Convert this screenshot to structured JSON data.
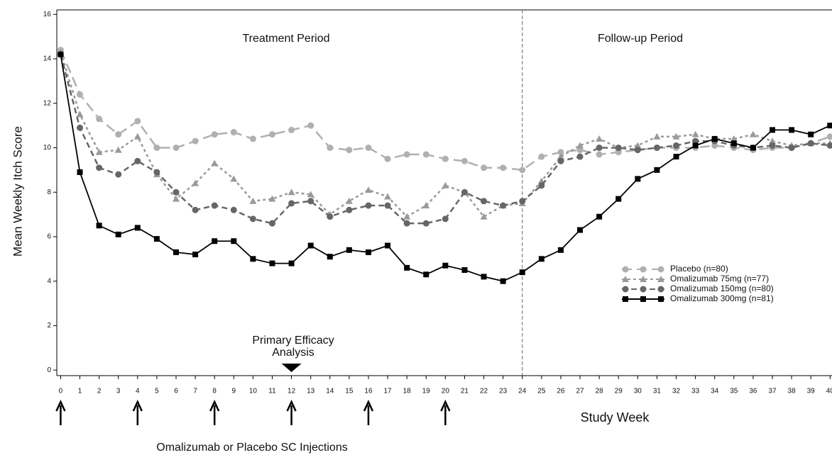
{
  "chart_data": {
    "type": "line",
    "y_label": "Mean Weekly Itch Score",
    "x_label": "Study Week",
    "annotations": {
      "treatment": "Treatment Period",
      "followup": "Follow-up Period",
      "primary": [
        "Primary Efficacy",
        "Analysis"
      ],
      "injections": "Omalizumab or Placebo SC Injections"
    },
    "period_divider": 24,
    "primary_analysis_week": 12,
    "injection_weeks": [
      0,
      4,
      8,
      12,
      16,
      20
    ],
    "x": [
      0,
      1,
      2,
      3,
      4,
      5,
      6,
      7,
      8,
      9,
      10,
      11,
      12,
      13,
      14,
      15,
      16,
      17,
      18,
      19,
      20,
      21,
      22,
      23,
      24,
      25,
      26,
      27,
      28,
      29,
      30,
      31,
      32,
      33,
      34,
      35,
      36,
      37,
      38,
      39,
      40
    ],
    "series": [
      {
        "name": "Placebo (n=80)",
        "color": "#b0b0b0",
        "dash": "14,7",
        "marker": "circle",
        "values": [
          14.4,
          12.4,
          11.3,
          10.6,
          11.2,
          10.0,
          10.0,
          10.3,
          10.6,
          10.7,
          10.4,
          10.6,
          10.8,
          11.0,
          10.0,
          9.9,
          10.0,
          9.5,
          9.7,
          9.7,
          9.5,
          9.4,
          9.1,
          9.1,
          9.0,
          9.6,
          9.8,
          9.9,
          9.7,
          9.8,
          9.9,
          10.0,
          10.0,
          10.0,
          10.1,
          10.0,
          9.9,
          10.0,
          10.0,
          10.2,
          10.5
        ]
      },
      {
        "name": "Omalizumab 75mg (n=77)",
        "color": "#9a9a9a",
        "dash": "4,4",
        "marker": "triangle",
        "values": [
          14.3,
          11.5,
          9.8,
          9.9,
          10.5,
          8.8,
          7.7,
          8.4,
          9.3,
          8.6,
          7.6,
          7.7,
          8.0,
          7.9,
          7.0,
          7.6,
          8.1,
          7.8,
          6.9,
          7.4,
          8.3,
          8.0,
          6.9,
          7.4,
          7.5,
          8.5,
          9.6,
          10.1,
          10.4,
          10.0,
          10.1,
          10.5,
          10.5,
          10.6,
          10.4,
          10.4,
          10.6,
          10.3,
          10.1,
          10.2,
          10.2
        ]
      },
      {
        "name": "Omalizumab 150mg (n=80)",
        "color": "#666666",
        "dash": "8,5",
        "marker": "circle",
        "values": [
          14.2,
          10.9,
          9.1,
          8.8,
          9.4,
          8.9,
          8.0,
          7.2,
          7.4,
          7.2,
          6.8,
          6.6,
          7.5,
          7.6,
          6.9,
          7.2,
          7.4,
          7.4,
          6.6,
          6.6,
          6.8,
          8.0,
          7.6,
          7.4,
          7.6,
          8.3,
          9.4,
          9.6,
          10.0,
          10.0,
          9.9,
          10.0,
          10.1,
          10.3,
          10.3,
          10.1,
          10.0,
          10.1,
          10.0,
          10.2,
          10.1
        ]
      },
      {
        "name": "Omalizumab 300mg (n=81)",
        "color": "#000000",
        "dash": "none",
        "marker": "square",
        "values": [
          14.2,
          8.9,
          6.5,
          6.1,
          6.4,
          5.9,
          5.3,
          5.2,
          5.8,
          5.8,
          5.0,
          4.8,
          4.8,
          5.6,
          5.1,
          5.4,
          5.3,
          5.6,
          4.6,
          4.3,
          4.7,
          4.5,
          4.2,
          4.0,
          4.4,
          5.0,
          5.4,
          6.3,
          6.9,
          7.7,
          8.6,
          9.0,
          9.6,
          10.1,
          10.4,
          10.2,
          10.0,
          10.8,
          10.8,
          10.6,
          11.0
        ]
      }
    ],
    "xlim": [
      -0.2,
      40.1
    ],
    "ylim": [
      -0.25,
      16.2
    ],
    "xticks": [
      0,
      1,
      2,
      3,
      4,
      5,
      6,
      7,
      8,
      9,
      10,
      11,
      12,
      13,
      14,
      15,
      16,
      17,
      18,
      19,
      20,
      21,
      22,
      23,
      24,
      25,
      26,
      27,
      28,
      29,
      30,
      31,
      32,
      33,
      34,
      35,
      36,
      37,
      38,
      39,
      40
    ],
    "yticks": [
      0,
      2,
      4,
      6,
      8,
      10,
      12,
      14,
      16
    ],
    "legend": "lower-right"
  }
}
